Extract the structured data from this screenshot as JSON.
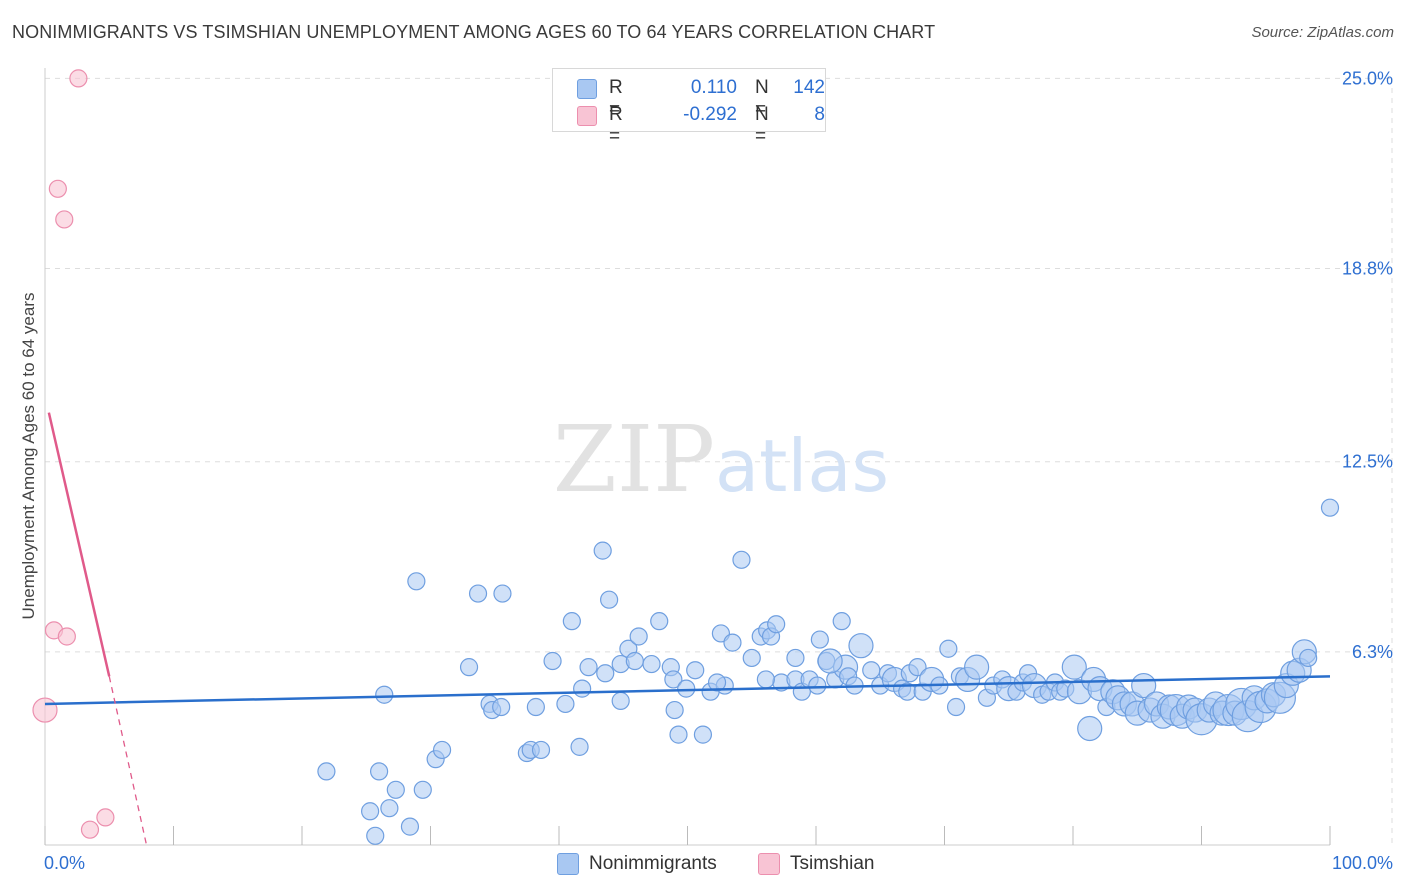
{
  "page": {
    "title": "NONIMMIGRANTS VS TSIMSHIAN UNEMPLOYMENT AMONG AGES 60 TO 64 YEARS CORRELATION CHART",
    "source": "Source: ZipAtlas.com"
  },
  "colors": {
    "blue_fill": "#a9c8f2",
    "blue_stroke": "#6f9fe0",
    "blue_line": "#2a6fcc",
    "pink_fill": "#f8c4d4",
    "pink_stroke": "#ec8fae",
    "pink_line": "#e05a8a",
    "grid": "#dddddd",
    "axis_label": "#2e6fd1"
  },
  "legend": {
    "series": [
      {
        "r_label": "R =",
        "r_value": "0.110",
        "n_label": "N =",
        "n_value": "142"
      },
      {
        "r_label": "R =",
        "r_value": "-0.292",
        "n_label": "N =",
        "n_value": "8"
      }
    ]
  },
  "bottom_legend": [
    "Nonimmigrants",
    "Tsimshian"
  ],
  "watermark": {
    "zip": "ZIP",
    "atlas": "atlas"
  },
  "chart_data": {
    "type": "scatter",
    "title": "NONIMMIGRANTS VS TSIMSHIAN UNEMPLOYMENT AMONG AGES 60 TO 64 YEARS CORRELATION CHART",
    "xlabel": "",
    "ylabel": "Unemployment Among Ages 60 to 64 years",
    "xlim": [
      0,
      100
    ],
    "ylim": [
      0,
      25.6
    ],
    "x_tick_labels": [
      "0.0%",
      "100.0%"
    ],
    "y_ticks": [
      6.3,
      12.5,
      18.8,
      25.0
    ],
    "y_tick_labels": [
      "6.3%",
      "12.5%",
      "18.8%",
      "25.0%"
    ],
    "grid": true,
    "series": [
      {
        "name": "Nonimmigrants",
        "r": 0.11,
        "n": 142,
        "trend": {
          "x": [
            0,
            100
          ],
          "y": [
            4.6,
            5.5
          ]
        },
        "points": [
          [
            21.9,
            2.4,
            1
          ],
          [
            25.3,
            1.1,
            1
          ],
          [
            25.7,
            0.3,
            1
          ],
          [
            26.0,
            2.4,
            1
          ],
          [
            26.4,
            4.9,
            1
          ],
          [
            26.8,
            1.2,
            1
          ],
          [
            27.3,
            1.8,
            1
          ],
          [
            28.4,
            0.6,
            1
          ],
          [
            28.9,
            8.6,
            1
          ],
          [
            29.4,
            1.8,
            1
          ],
          [
            30.4,
            2.8,
            1
          ],
          [
            30.9,
            3.1,
            1
          ],
          [
            33.0,
            5.8,
            1
          ],
          [
            33.7,
            8.2,
            1
          ],
          [
            34.6,
            4.6,
            1
          ],
          [
            34.8,
            4.4,
            1
          ],
          [
            35.5,
            4.5,
            1
          ],
          [
            35.6,
            8.2,
            1
          ],
          [
            37.5,
            3.0,
            1
          ],
          [
            37.8,
            3.1,
            1
          ],
          [
            38.6,
            3.1,
            1
          ],
          [
            38.2,
            4.5,
            1
          ],
          [
            39.5,
            6.0,
            1
          ],
          [
            40.5,
            4.6,
            1
          ],
          [
            41.0,
            7.3,
            1
          ],
          [
            41.6,
            3.2,
            1
          ],
          [
            41.8,
            5.1,
            1
          ],
          [
            42.3,
            5.8,
            1
          ],
          [
            43.4,
            9.6,
            1
          ],
          [
            43.6,
            5.6,
            1
          ],
          [
            43.9,
            8.0,
            1
          ],
          [
            44.8,
            4.7,
            1
          ],
          [
            44.8,
            5.9,
            1
          ],
          [
            45.4,
            6.4,
            1
          ],
          [
            45.9,
            6.0,
            1
          ],
          [
            46.2,
            6.8,
            1
          ],
          [
            47.2,
            5.9,
            1
          ],
          [
            47.8,
            7.3,
            1
          ],
          [
            48.7,
            5.8,
            1
          ],
          [
            48.9,
            5.4,
            1
          ],
          [
            49.0,
            4.4,
            1
          ],
          [
            49.3,
            3.6,
            1
          ],
          [
            49.9,
            5.1,
            1
          ],
          [
            50.6,
            5.7,
            1
          ],
          [
            51.2,
            3.6,
            1
          ],
          [
            51.8,
            5.0,
            1
          ],
          [
            52.6,
            6.9,
            1
          ],
          [
            52.9,
            5.2,
            1
          ],
          [
            53.5,
            6.6,
            1
          ],
          [
            54.2,
            9.3,
            1
          ],
          [
            55.0,
            6.1,
            1
          ],
          [
            55.7,
            6.8,
            1
          ],
          [
            56.2,
            7.0,
            1
          ],
          [
            56.5,
            6.8,
            1
          ],
          [
            56.9,
            7.2,
            1
          ],
          [
            57.3,
            5.3,
            1
          ],
          [
            58.4,
            5.4,
            1
          ],
          [
            58.4,
            6.1,
            1
          ],
          [
            58.9,
            5.0,
            1
          ],
          [
            59.5,
            5.4,
            1
          ],
          [
            60.1,
            5.2,
            1
          ],
          [
            60.3,
            6.7,
            1
          ],
          [
            60.8,
            6.0,
            1
          ],
          [
            61.5,
            5.4,
            1
          ],
          [
            62.0,
            7.3,
            1
          ],
          [
            62.3,
            5.8,
            2
          ],
          [
            62.5,
            5.5,
            1
          ],
          [
            63.0,
            5.2,
            1
          ],
          [
            63.5,
            6.5,
            2
          ],
          [
            64.3,
            5.7,
            1
          ],
          [
            65.0,
            5.2,
            1
          ],
          [
            65.6,
            5.6,
            1
          ],
          [
            66.1,
            5.4,
            2
          ],
          [
            66.7,
            5.1,
            1
          ],
          [
            67.1,
            5.0,
            1
          ],
          [
            67.3,
            5.6,
            1
          ],
          [
            67.9,
            5.8,
            1
          ],
          [
            68.3,
            5.0,
            1
          ],
          [
            69.0,
            5.4,
            2
          ],
          [
            69.6,
            5.2,
            1
          ],
          [
            70.3,
            6.4,
            1
          ],
          [
            70.9,
            4.5,
            1
          ],
          [
            71.2,
            5.5,
            1
          ],
          [
            71.8,
            5.4,
            2
          ],
          [
            72.5,
            5.8,
            2
          ],
          [
            73.3,
            4.8,
            1
          ],
          [
            73.8,
            5.2,
            1
          ],
          [
            74.5,
            5.4,
            1
          ],
          [
            75.0,
            5.1,
            2
          ],
          [
            75.6,
            5.0,
            1
          ],
          [
            76.1,
            5.3,
            1
          ],
          [
            76.5,
            5.6,
            1
          ],
          [
            77.0,
            5.2,
            2
          ],
          [
            77.6,
            4.9,
            1
          ],
          [
            78.1,
            5.0,
            1
          ],
          [
            78.6,
            5.3,
            1
          ],
          [
            79.0,
            5.0,
            1
          ],
          [
            79.4,
            5.1,
            1
          ],
          [
            80.1,
            5.8,
            2
          ],
          [
            80.5,
            5.0,
            2
          ],
          [
            81.3,
            3.8,
            2
          ],
          [
            81.6,
            5.4,
            2
          ],
          [
            82.1,
            5.1,
            2
          ],
          [
            82.6,
            4.5,
            1
          ],
          [
            83.1,
            5.0,
            2
          ],
          [
            83.5,
            4.8,
            2
          ],
          [
            84.0,
            4.6,
            2
          ],
          [
            84.6,
            4.6,
            2
          ],
          [
            85.0,
            4.3,
            2
          ],
          [
            85.5,
            5.2,
            2
          ],
          [
            86.0,
            4.4,
            2
          ],
          [
            86.5,
            4.6,
            2
          ],
          [
            87.0,
            4.2,
            2
          ],
          [
            87.5,
            4.5,
            2
          ],
          [
            88.0,
            4.4,
            3
          ],
          [
            88.5,
            4.2,
            2
          ],
          [
            89.0,
            4.5,
            2
          ],
          [
            89.5,
            4.4,
            2
          ],
          [
            90.0,
            4.1,
            3
          ],
          [
            90.6,
            4.4,
            2
          ],
          [
            91.1,
            4.6,
            2
          ],
          [
            91.6,
            4.3,
            2
          ],
          [
            92.1,
            4.4,
            3
          ],
          [
            92.6,
            4.3,
            2
          ],
          [
            93.1,
            4.6,
            3
          ],
          [
            93.6,
            4.2,
            3
          ],
          [
            94.1,
            4.8,
            2
          ],
          [
            94.6,
            4.5,
            3
          ],
          [
            95.1,
            4.7,
            2
          ],
          [
            95.6,
            4.9,
            2
          ],
          [
            96.1,
            4.8,
            3
          ],
          [
            96.6,
            5.2,
            2
          ],
          [
            97.1,
            5.6,
            2
          ],
          [
            97.6,
            5.7,
            2
          ],
          [
            98.0,
            6.3,
            2
          ],
          [
            98.3,
            6.1,
            1
          ],
          [
            100.0,
            11.0,
            1
          ],
          [
            61.1,
            6.0,
            2
          ],
          [
            56.1,
            5.4,
            1
          ],
          [
            52.3,
            5.3,
            1
          ]
        ]
      },
      {
        "name": "Tsimshian",
        "r": -0.292,
        "n": 8,
        "trend_solid": {
          "x": [
            0.3,
            5.0
          ],
          "y": [
            14.1,
            5.5
          ]
        },
        "trend_dashed": {
          "x": [
            5.0,
            7.9
          ],
          "y": [
            5.5,
            0.0
          ]
        },
        "points": [
          [
            0.0,
            4.4,
            2
          ],
          [
            0.7,
            7.0,
            1
          ],
          [
            1.0,
            21.4,
            1
          ],
          [
            1.5,
            20.4,
            1
          ],
          [
            1.7,
            6.8,
            1
          ],
          [
            2.6,
            25.0,
            1
          ],
          [
            3.5,
            0.5,
            1
          ],
          [
            4.7,
            0.9,
            1
          ]
        ]
      }
    ]
  }
}
